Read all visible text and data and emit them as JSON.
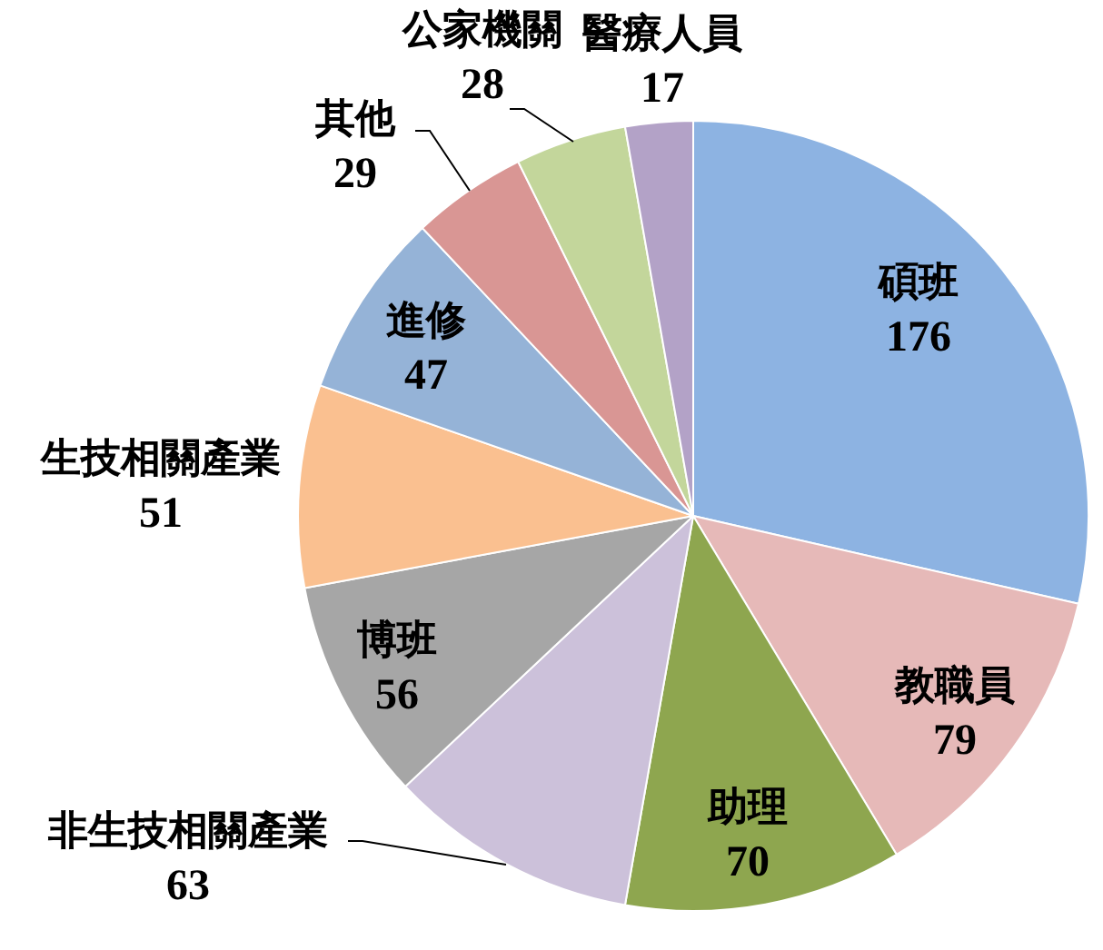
{
  "chart_data": {
    "type": "pie",
    "categories": [
      "碩班",
      "教職員",
      "助理",
      "非生技相關產業",
      "博班",
      "生技相關產業",
      "進修",
      "其他",
      "公家機關",
      "醫療人員"
    ],
    "values": [
      176,
      79,
      70,
      63,
      56,
      51,
      47,
      29,
      28,
      17
    ],
    "colors": [
      "#8db3e2",
      "#e6b9b8",
      "#8ea64f",
      "#ccc1da",
      "#a6a6a6",
      "#fac090",
      "#95b3d7",
      "#d99694",
      "#c3d69b",
      "#b3a2c7"
    ],
    "data_labels": true,
    "legend": false
  }
}
